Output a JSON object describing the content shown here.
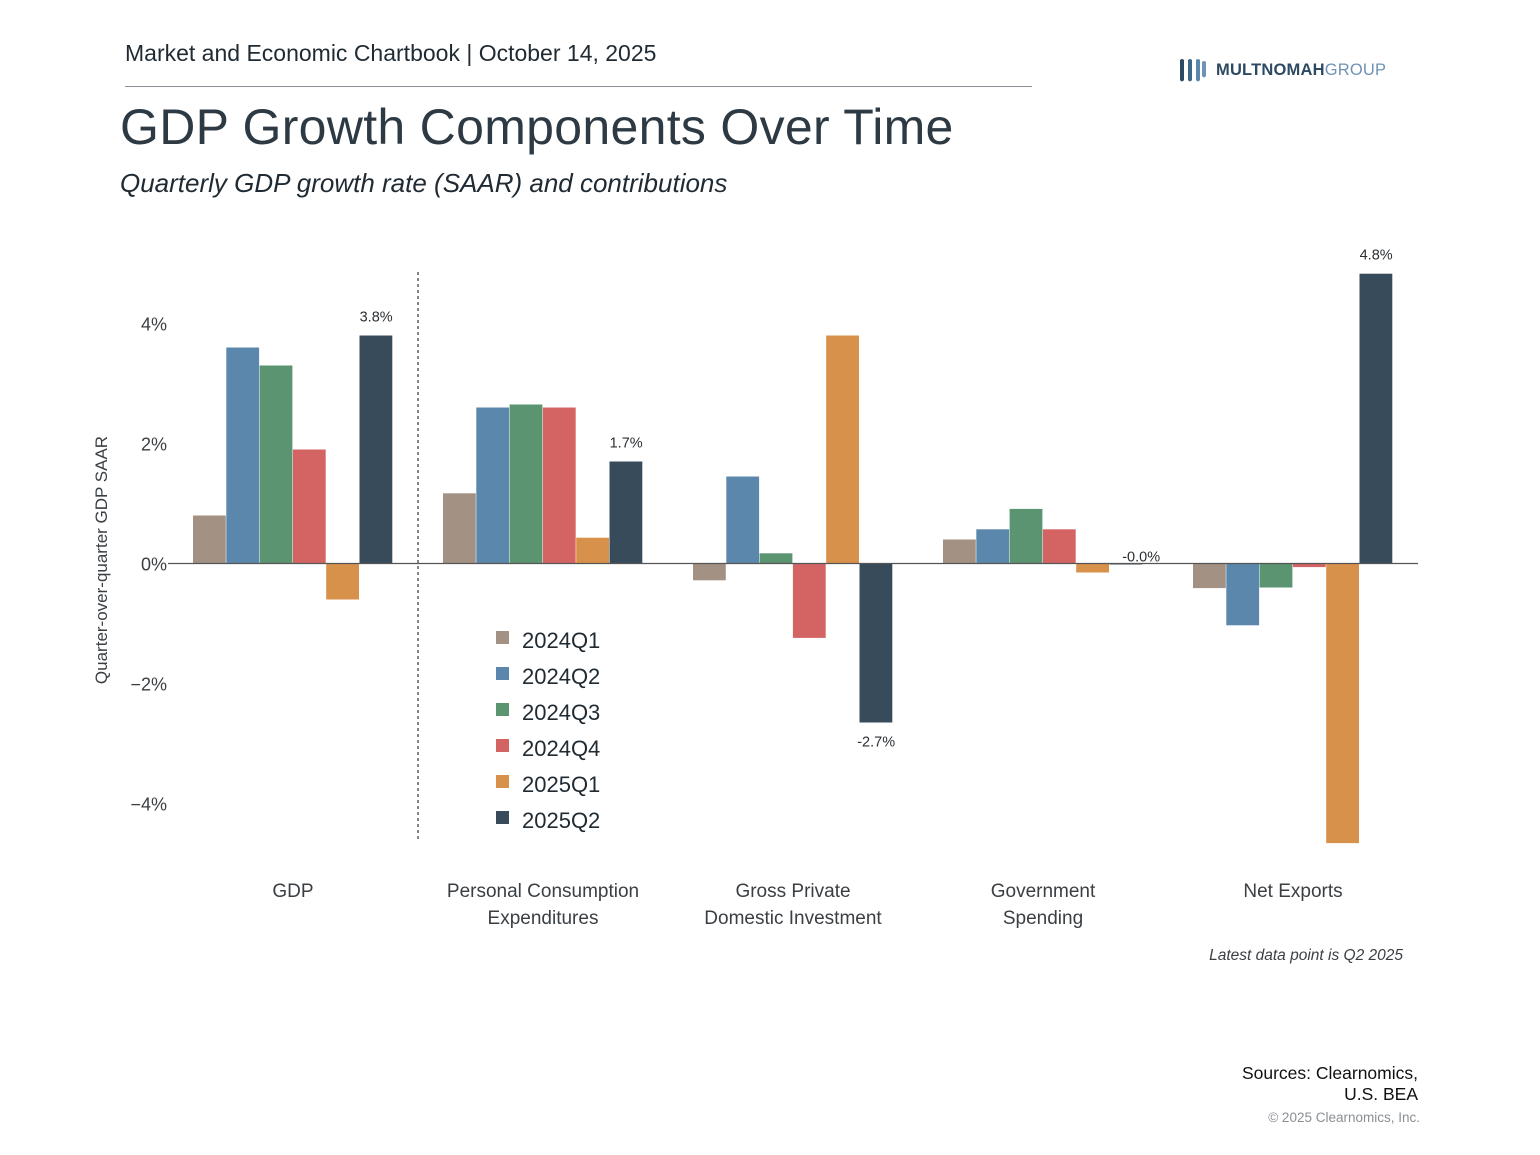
{
  "header": {
    "title_line": "Market and Economic Chartbook | October 14, 2025",
    "logo": {
      "strong": "MULTNOMAH",
      "light": "GROUP",
      "brand_color": "#2e4a63",
      "accent_color": "#6f93b4"
    }
  },
  "title": "GDP Growth Components Over Time",
  "subtitle": "Quarterly GDP growth rate (SAAR) and contributions",
  "chart_data": {
    "type": "bar",
    "categories": [
      [
        "GDP"
      ],
      [
        "Personal Consumption",
        "Expenditures"
      ],
      [
        "Gross Private",
        "Domestic Investment"
      ],
      [
        "Government",
        "Spending"
      ],
      [
        "Net Exports"
      ]
    ],
    "series": [
      {
        "name": "2024Q1",
        "color": "#a39283",
        "values": [
          0.8,
          1.17,
          -0.28,
          0.4,
          -0.41
        ]
      },
      {
        "name": "2024Q2",
        "color": "#5b87ad",
        "values": [
          3.6,
          2.6,
          1.45,
          0.57,
          -1.03
        ]
      },
      {
        "name": "2024Q3",
        "color": "#5b9470",
        "values": [
          3.3,
          2.65,
          0.17,
          0.91,
          -0.4
        ]
      },
      {
        "name": "2024Q4",
        "color": "#d46464",
        "values": [
          1.9,
          2.6,
          -1.24,
          0.57,
          -0.06
        ]
      },
      {
        "name": "2025Q1",
        "color": "#d8914a",
        "values": [
          -0.6,
          0.43,
          3.8,
          -0.15,
          -4.66
        ]
      },
      {
        "name": "2025Q2",
        "color": "#374b5b",
        "values": [
          3.8,
          1.7,
          -2.65,
          0.0,
          4.83
        ]
      }
    ],
    "data_labels": [
      "3.8%",
      "1.7%",
      "-2.7%",
      "-0.0%",
      "4.8%"
    ],
    "ylabel": "Quarter-over-quarter GDP SAAR",
    "ylim": [
      -4.7,
      5.1
    ],
    "yticks": [
      4,
      2,
      0,
      -2,
      -4
    ],
    "ytick_labels": [
      "4%",
      "2%",
      "0%",
      "−2%",
      "−4%"
    ],
    "legend_position": "bottom-left of second group",
    "grid": false
  },
  "footnote": "Latest data point is Q2 2025",
  "sources": [
    "Sources: Clearnomics,",
    "U.S. BEA"
  ],
  "copyright": "© 2025 Clearnomics, Inc."
}
